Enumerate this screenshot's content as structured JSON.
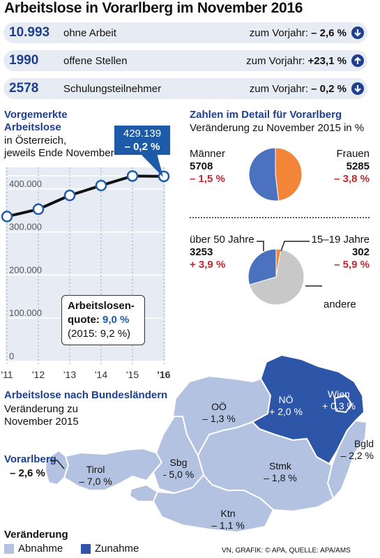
{
  "title": "Arbeitslose in Vorarlberg im November 2016",
  "stats": [
    {
      "value": "10.993",
      "label": "ohne Arbeit",
      "compare_label": "zum Vorjahr:",
      "change": "– 2,6 %",
      "direction": "down"
    },
    {
      "value": "1990",
      "label": "offene Stellen",
      "compare_label": "zum Vorjahr:",
      "change": "+23,1 %",
      "direction": "up"
    },
    {
      "value": "2578",
      "label": "Schulungsteilnehmer",
      "compare_label": "zum Vorjahr:",
      "change": "– 0,2 %",
      "direction": "down"
    }
  ],
  "line_section": {
    "heading_line1": "Vorgemerkte",
    "heading_line2": "Arbeitslose",
    "sub_line1": "in Österreich,",
    "sub_line2": "jeweils Ende November",
    "callout_value": "429.139",
    "callout_change": "– 0,2 %",
    "quote_line1": "Arbeitslosen-",
    "quote_label": "quote:",
    "quote_value": "9,0 %",
    "quote_prev": "(2015: 9,2 %)"
  },
  "pie_section": {
    "heading": "Zahlen im Detail für Vorarlberg",
    "subheading": "Veränderung zu November 2015 in %",
    "men_label": "Männer",
    "men_value": "5708",
    "men_change": "– 1,5 %",
    "women_label": "Frauen",
    "women_value": "5285",
    "women_change": "– 3,8 %",
    "over50_label": "über 50 Jahre",
    "over50_value": "3253",
    "over50_change": "+ 3,9 %",
    "young_label": "15–19 Jahre",
    "young_value": "302",
    "young_change": "– 5,9 %",
    "other_label": "andere"
  },
  "map_section": {
    "heading": "Arbeitslose nach Bundesländern",
    "sub_line1": "Veränderung zu",
    "sub_line2": "November 2015",
    "regions": [
      {
        "name": "Vorarlberg",
        "change": "– 2,6 %"
      },
      {
        "name": "Tirol",
        "change": "– 7,0 %"
      },
      {
        "name": "Sbg",
        "change": "- 5,0 %"
      },
      {
        "name": "OÖ",
        "change": "– 1,3 %"
      },
      {
        "name": "NÖ",
        "change": "+ 2,0 %"
      },
      {
        "name": "Wien",
        "change": "+ 0,3 %"
      },
      {
        "name": "Bgld",
        "change": "– 2,2 %"
      },
      {
        "name": "Stmk",
        "change": "– 1,8 %"
      },
      {
        "name": "Ktn",
        "change": "– 1,1 %"
      }
    ]
  },
  "legend": {
    "title": "Veränderung",
    "decrease": "Abnahme",
    "increase": "Zunahme",
    "decrease_color": "#b4c2e2",
    "increase_color": "#2d55a8"
  },
  "credit": "VN, GRAFIK: © APA, QUELLE: APA/AMS",
  "chart_data": [
    {
      "type": "line",
      "title": "Vorgemerkte Arbeitslose in Österreich, jeweils Ende November",
      "categories": [
        "'11",
        "'12",
        "'13",
        "'14",
        "'15",
        "'16"
      ],
      "series": [
        {
          "values": [
            336000,
            353000,
            385000,
            408000,
            430000,
            429139
          ]
        }
      ],
      "y_ticks": [
        "0",
        "100.000",
        "200.000",
        "300.000",
        "400.000"
      ],
      "ylim": [
        0,
        450000
      ],
      "grid": true,
      "line_color": "#111111",
      "background_color": "#e7ebf4"
    },
    {
      "type": "pie",
      "title": "Zahlen im Detail für Vorarlberg",
      "slices": [
        {
          "label": "Männer",
          "value": 5708,
          "color": "#4a72bf"
        },
        {
          "label": "Frauen",
          "value": 5285,
          "color": "#f28538"
        }
      ]
    },
    {
      "type": "pie",
      "slices": [
        {
          "label": "15–19 Jahre",
          "value": 302,
          "color": "#f28538"
        },
        {
          "label": "andere",
          "value": 7438,
          "color": "#c8c8c8"
        },
        {
          "label": "über 50 Jahre",
          "value": 3253,
          "color": "#4a72bf"
        }
      ]
    }
  ]
}
